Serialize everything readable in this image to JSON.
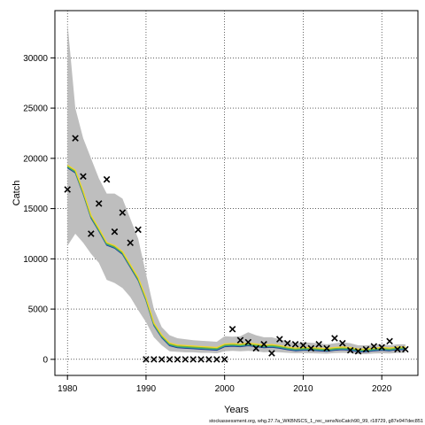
{
  "chart_data": {
    "type": "line",
    "title": "",
    "xlabel": "Years",
    "ylabel": "Catch",
    "footnote": "stockassessment.org, whg.27.7a_WKBNSCS_1_rec_sensNoCatch90_99, r18729, g87e947dec851",
    "xlim": [
      1978.4,
      2024.6
    ],
    "ylim": [
      -1600,
      34700
    ],
    "x_ticks": [
      1980,
      1990,
      2000,
      2010,
      2020
    ],
    "y_ticks": [
      0,
      5000,
      10000,
      15000,
      20000,
      25000,
      30000
    ],
    "grid": true,
    "colors": {
      "band": "#bebebe",
      "line_estimate": "#1f3a93",
      "line_teal": "#2aa198",
      "line_green": "#6db33f",
      "line_yellow": "#f2d62b",
      "observed": "#000000"
    },
    "years": [
      1980,
      1981,
      1982,
      1983,
      1984,
      1985,
      1986,
      1987,
      1988,
      1989,
      1990,
      1991,
      1992,
      1993,
      1994,
      1995,
      1996,
      1997,
      1998,
      1999,
      2000,
      2001,
      2002,
      2003,
      2004,
      2005,
      2006,
      2007,
      2008,
      2009,
      2010,
      2011,
      2012,
      2013,
      2014,
      2015,
      2016,
      2017,
      2018,
      2019,
      2020,
      2021,
      2022,
      2023
    ],
    "series": [
      {
        "role": "estimate",
        "values": [
          19200,
          18700,
          16600,
          14200,
          12900,
          11500,
          11200,
          10600,
          9300,
          8000,
          6000,
          3500,
          2300,
          1500,
          1300,
          1250,
          1200,
          1150,
          1100,
          1050,
          1400,
          1450,
          1400,
          1500,
          1400,
          1300,
          1350,
          1250,
          1100,
          1000,
          1050,
          1050,
          1000,
          950,
          1050,
          1100,
          1050,
          900,
          900,
          1000,
          1050,
          1000,
          1100,
          1100
        ]
      },
      {
        "role": "band_upper",
        "values": [
          33500,
          25000,
          22000,
          20000,
          18000,
          16500,
          16500,
          16000,
          14000,
          12000,
          8500,
          5000,
          3200,
          2400,
          2100,
          2000,
          1900,
          1850,
          1800,
          1750,
          2300,
          2250,
          2300,
          2700,
          2400,
          2200,
          2200,
          2000,
          1800,
          1600,
          1700,
          1650,
          1600,
          1500,
          1600,
          1700,
          1600,
          1400,
          1400,
          1450,
          1500,
          1400,
          1500,
          1500
        ]
      },
      {
        "role": "band_lower",
        "values": [
          11300,
          12500,
          11600,
          10500,
          9600,
          7900,
          7600,
          7100,
          6200,
          4900,
          3700,
          2200,
          1400,
          800,
          750,
          700,
          700,
          650,
          650,
          600,
          800,
          850,
          800,
          850,
          800,
          700,
          750,
          700,
          650,
          600,
          620,
          600,
          580,
          560,
          620,
          650,
          620,
          520,
          520,
          580,
          600,
          580,
          650,
          650
        ]
      },
      {
        "role": "observed",
        "values": [
          16900,
          22000,
          18200,
          12500,
          15500,
          17900,
          12700,
          14600,
          11600,
          12900,
          0,
          0,
          0,
          0,
          0,
          0,
          0,
          0,
          0,
          0,
          0,
          3000,
          1900,
          1700,
          1100,
          1500,
          600,
          2000,
          1600,
          1500,
          1400,
          1100,
          1500,
          1100,
          2100,
          1600,
          900,
          800,
          1000,
          1300,
          1200,
          1800,
          1000,
          1000
        ]
      }
    ]
  }
}
